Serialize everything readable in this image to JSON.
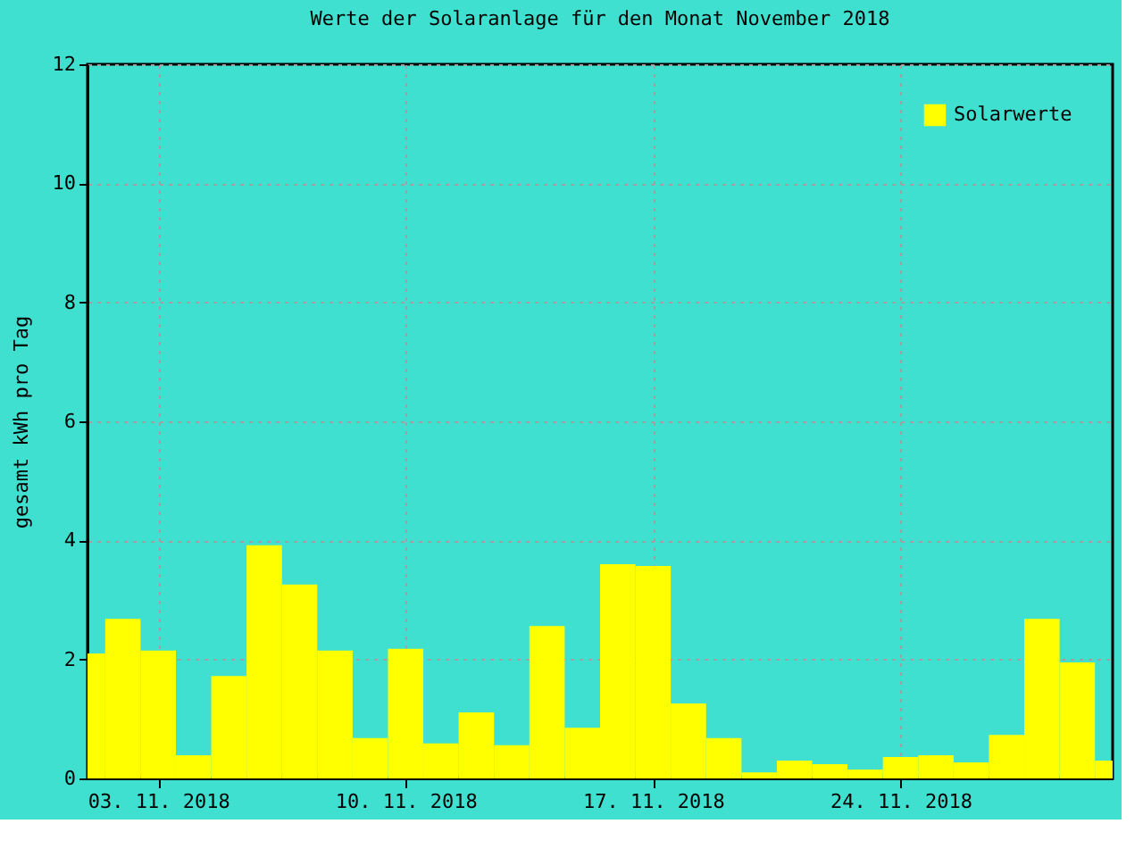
{
  "chart_data": {
    "type": "bar",
    "title": "Werte der Solaranlage für den Monat November 2018",
    "ylabel": "gesamt kWh pro Tag",
    "x": [
      "2018-11-01",
      "2018-11-02",
      "2018-11-03",
      "2018-11-04",
      "2018-11-05",
      "2018-11-06",
      "2018-11-07",
      "2018-11-08",
      "2018-11-09",
      "2018-11-10",
      "2018-11-11",
      "2018-11-12",
      "2018-11-13",
      "2018-11-14",
      "2018-11-15",
      "2018-11-16",
      "2018-11-17",
      "2018-11-18",
      "2018-11-19",
      "2018-11-20",
      "2018-11-21",
      "2018-11-22",
      "2018-11-23",
      "2018-11-24",
      "2018-11-25",
      "2018-11-26",
      "2018-11-27",
      "2018-11-28",
      "2018-11-29",
      "2018-11-30"
    ],
    "series": [
      {
        "name": "Solarwerte",
        "color": "#ffff00",
        "values": [
          2.1,
          2.68,
          2.15,
          0.39,
          1.72,
          3.92,
          3.26,
          2.15,
          0.68,
          2.18,
          0.59,
          1.11,
          0.56,
          2.56,
          0.85,
          3.6,
          3.57,
          1.26,
          0.68,
          0.1,
          0.3,
          0.24,
          0.15,
          0.36,
          0.39,
          0.27,
          0.73,
          2.68,
          1.95,
          0.3
        ]
      }
    ],
    "xlim": [
      "2018-11-01",
      "2018-11-30"
    ],
    "xticks": [
      {
        "value": "2018-11-03",
        "label": "03. 11. 2018"
      },
      {
        "value": "2018-11-10",
        "label": "10. 11. 2018"
      },
      {
        "value": "2018-11-17",
        "label": "17. 11. 2018"
      },
      {
        "value": "2018-11-24",
        "label": "24. 11. 2018"
      }
    ],
    "ylim": [
      0,
      12
    ],
    "yticks": [
      0,
      2,
      4,
      6,
      8,
      10,
      12
    ],
    "grid": true,
    "legend": "top right"
  }
}
